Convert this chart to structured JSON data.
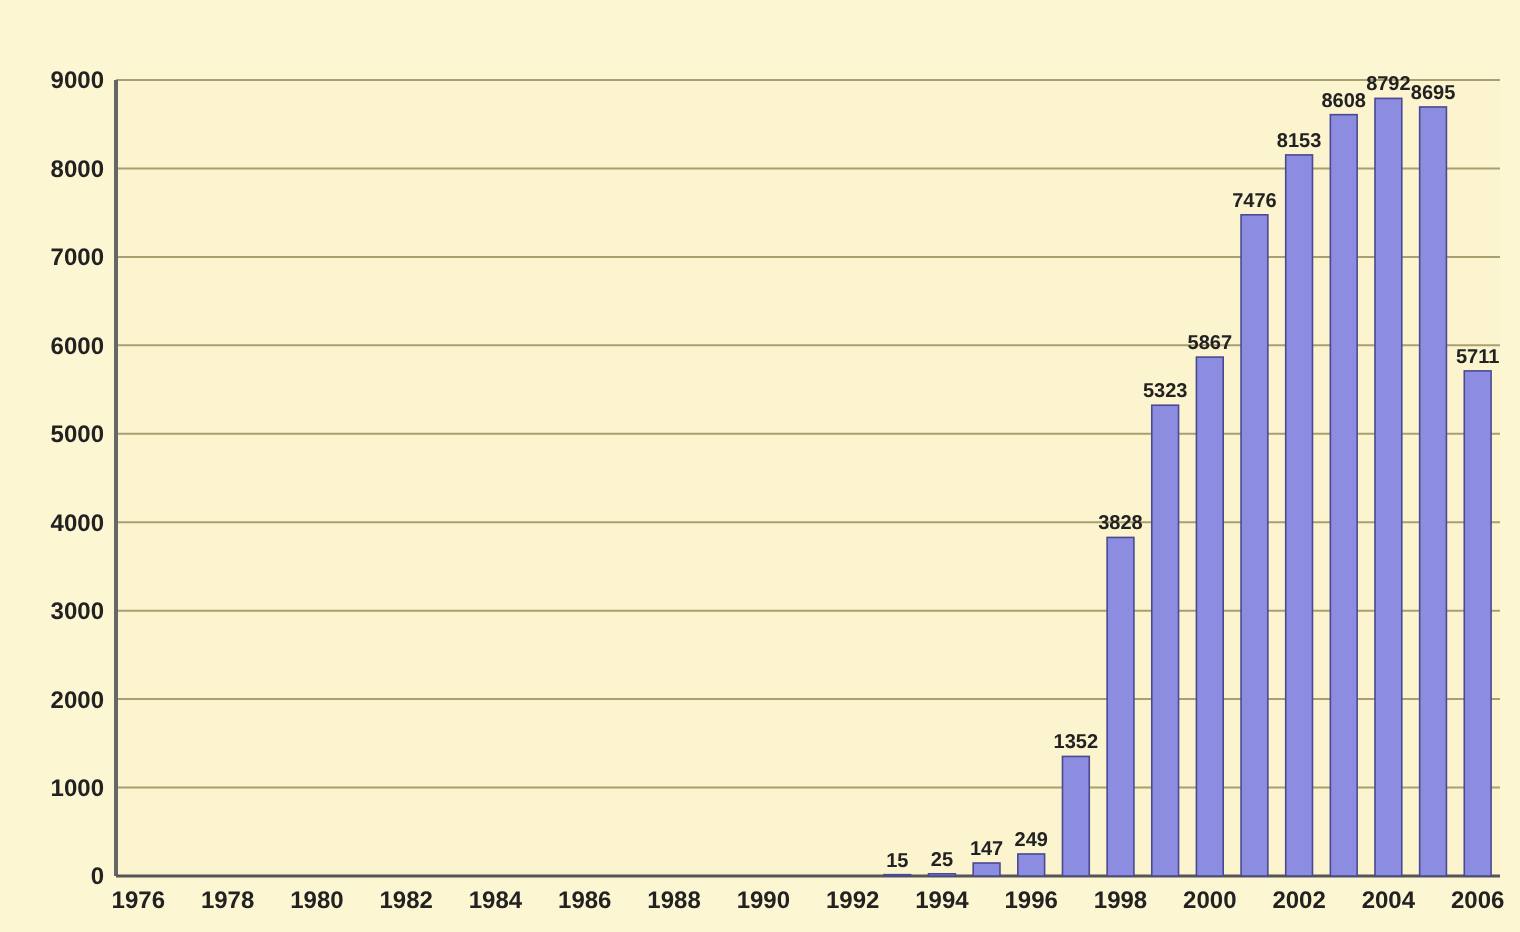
{
  "chart_data": {
    "type": "bar",
    "categories": [
      "1976",
      null,
      "1978",
      null,
      "1980",
      null,
      "1982",
      null,
      "1984",
      null,
      "1986",
      null,
      "1988",
      null,
      "1990",
      null,
      "1992",
      null,
      "1994",
      null,
      "1996",
      null,
      "1998",
      null,
      "2000",
      null,
      "2002",
      null,
      "2004",
      null,
      "2006"
    ],
    "values": [
      0,
      0,
      0,
      0,
      0,
      0,
      0,
      0,
      0,
      0,
      0,
      0,
      0,
      0,
      0,
      0,
      0,
      15,
      25,
      147,
      249,
      1352,
      3828,
      5323,
      5867,
      7476,
      8153,
      8608,
      8792,
      8695,
      5711
    ],
    "value_labels": [
      null,
      null,
      null,
      null,
      null,
      null,
      null,
      null,
      null,
      null,
      null,
      null,
      null,
      null,
      null,
      null,
      null,
      "15",
      "25",
      "147",
      "249",
      "1352",
      "3828",
      "5323",
      "5867",
      "7476",
      "8153",
      "8608",
      "8792",
      "8695",
      "5711"
    ],
    "color": "#8c8ce0",
    "ylim": [
      0,
      9000
    ],
    "yticks": [
      0,
      1000,
      2000,
      3000,
      4000,
      5000,
      6000,
      7000,
      8000,
      9000
    ],
    "grid": "y"
  }
}
